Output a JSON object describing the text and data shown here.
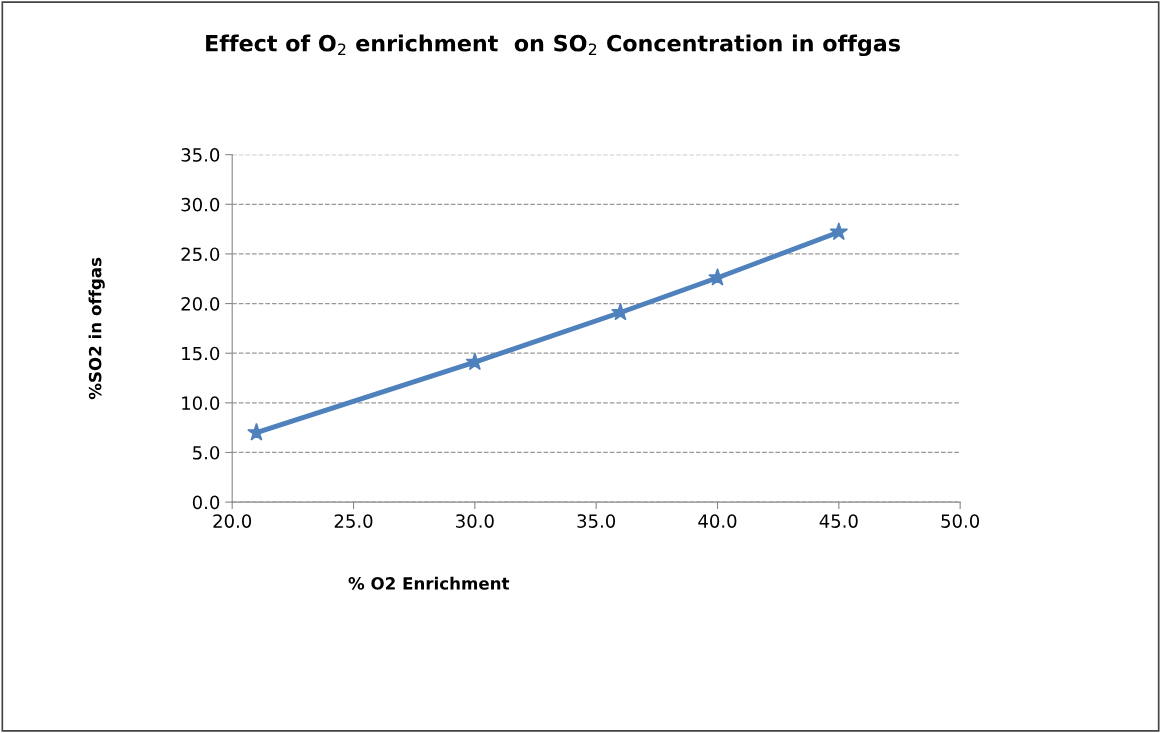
{
  "chart_data": {
    "type": "line",
    "title": "Effect of O$_{2}$ enrichment  on SO$_{2}$ Concentration in offgas",
    "xlabel": "% O2 Enrichment",
    "ylabel": "%SO2 in offgas",
    "x": [
      21.0,
      30.0,
      36.0,
      40.0,
      45.0
    ],
    "series": [
      {
        "color": "#4f81bd",
        "values": [
          7.0,
          14.1,
          19.1,
          22.6,
          27.2
        ]
      }
    ],
    "xlim": [
      20,
      50
    ],
    "xticks": [
      {
        "value": 20,
        "label": "20.0"
      },
      {
        "value": 25,
        "label": "25.0"
      },
      {
        "value": 30,
        "label": "30.0"
      },
      {
        "value": 35,
        "label": "35.0"
      },
      {
        "value": 40,
        "label": "40.0"
      },
      {
        "value": 45,
        "label": "45.0"
      },
      {
        "value": 50,
        "label": "50.0"
      }
    ],
    "ylim": [
      0,
      35
    ],
    "yticks": [
      {
        "value": 0,
        "label": "0.0"
      },
      {
        "value": 5,
        "label": "5.0"
      },
      {
        "value": 10,
        "label": "10.0"
      },
      {
        "value": 15,
        "label": "15.0"
      },
      {
        "value": 20,
        "label": "20.0"
      },
      {
        "value": 25,
        "label": "25.0"
      },
      {
        "value": 30,
        "label": "30.0"
      },
      {
        "value": 35,
        "label": "35.0"
      }
    ],
    "grid": "y",
    "legend": false,
    "marker": "star",
    "line_style": "solid"
  }
}
